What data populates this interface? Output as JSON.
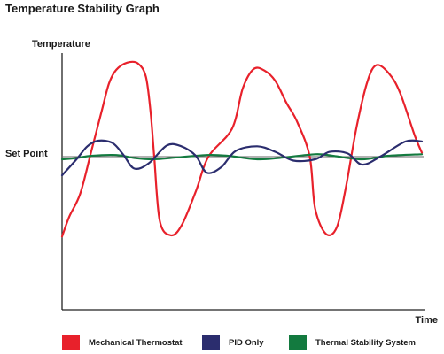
{
  "chart_data": {
    "type": "line",
    "title": "Temperature Stability Graph",
    "ylabel": "Temperature",
    "xlabel": "Time",
    "reference_line": {
      "label": "Set Point",
      "y": 0,
      "color": "#666666"
    },
    "ylim": [
      -1.15,
      1.3
    ],
    "xlim": [
      0,
      1
    ],
    "grid": false,
    "legend_position": "bottom",
    "series": [
      {
        "name": "Mechanical Thermostat",
        "color": "#e8212b",
        "points": [
          [
            0.0,
            -0.6
          ],
          [
            0.02,
            -0.45
          ],
          [
            0.05,
            -0.28
          ],
          [
            0.08,
            0.05
          ],
          [
            0.11,
            0.58
          ],
          [
            0.13,
            0.92
          ],
          [
            0.15,
            1.09
          ],
          [
            0.18,
            1.18
          ],
          [
            0.21,
            1.17
          ],
          [
            0.232,
            1.0
          ],
          [
            0.245,
            0.55
          ],
          [
            0.255,
            0.0
          ],
          [
            0.27,
            -0.48
          ],
          [
            0.3,
            -0.59
          ],
          [
            0.33,
            -0.52
          ],
          [
            0.37,
            -0.26
          ],
          [
            0.405,
            0.0
          ],
          [
            0.47,
            0.35
          ],
          [
            0.5,
            0.86
          ],
          [
            0.53,
            1.1
          ],
          [
            0.56,
            1.08
          ],
          [
            0.59,
            0.95
          ],
          [
            0.62,
            0.68
          ],
          [
            0.65,
            0.44
          ],
          [
            0.685,
            0.0
          ],
          [
            0.7,
            -0.39
          ],
          [
            0.73,
            -0.58
          ],
          [
            0.76,
            -0.53
          ],
          [
            0.785,
            -0.23
          ],
          [
            0.815,
            0.38
          ],
          [
            0.845,
            0.95
          ],
          [
            0.87,
            1.15
          ],
          [
            0.905,
            1.04
          ],
          [
            0.935,
            0.8
          ],
          [
            0.975,
            0.27
          ],
          [
            0.995,
            0.05
          ]
        ]
      },
      {
        "name": "PID Only",
        "color": "#2b2d6e",
        "points": [
          [
            0.0,
            -0.14
          ],
          [
            0.04,
            -0.02
          ],
          [
            0.07,
            0.13
          ],
          [
            0.1,
            0.2
          ],
          [
            0.14,
            0.17
          ],
          [
            0.17,
            0.02
          ],
          [
            0.2,
            -0.09
          ],
          [
            0.24,
            -0.05
          ],
          [
            0.29,
            0.14
          ],
          [
            0.33,
            0.13
          ],
          [
            0.37,
            0.01
          ],
          [
            0.4,
            -0.12
          ],
          [
            0.44,
            -0.08
          ],
          [
            0.48,
            0.07
          ],
          [
            0.54,
            0.13
          ],
          [
            0.59,
            0.06
          ],
          [
            0.64,
            -0.03
          ],
          [
            0.7,
            -0.02
          ],
          [
            0.74,
            0.06
          ],
          [
            0.79,
            0.04
          ],
          [
            0.83,
            -0.06
          ],
          [
            0.88,
            0.0
          ],
          [
            0.95,
            0.19
          ],
          [
            0.995,
            0.19
          ]
        ]
      },
      {
        "name": "Thermal Stability System",
        "color": "#137a3f",
        "points": [
          [
            0.0,
            -0.02
          ],
          [
            0.04,
            -0.01
          ],
          [
            0.08,
            0.01
          ],
          [
            0.15,
            0.02
          ],
          [
            0.2,
            -0.01
          ],
          [
            0.25,
            -0.02
          ],
          [
            0.3,
            -0.01
          ],
          [
            0.4,
            0.02
          ],
          [
            0.46,
            0.01
          ],
          [
            0.54,
            -0.02
          ],
          [
            0.6,
            -0.01
          ],
          [
            0.7,
            0.03
          ],
          [
            0.75,
            0.01
          ],
          [
            0.83,
            -0.02
          ],
          [
            0.9,
            0.01
          ],
          [
            0.995,
            0.03
          ]
        ]
      }
    ]
  }
}
